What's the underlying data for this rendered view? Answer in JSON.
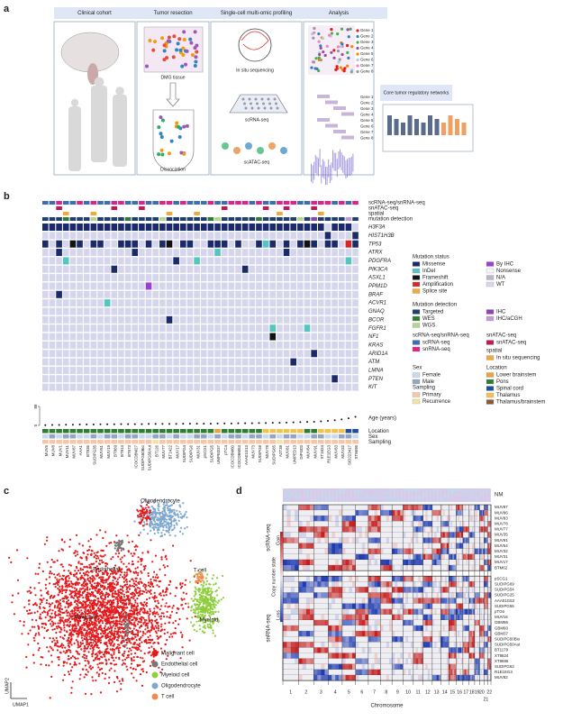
{
  "panel_a": {
    "letter": "a",
    "stages": [
      "Clinical cohort",
      "Tumor resection",
      "Single-cell multi-omic profiling",
      "Analysis"
    ],
    "labels": {
      "tissue": "DMG tissue",
      "dissociation": "Dissociation",
      "insitu": "In situ sequencing",
      "scrna": "scRNA-seq",
      "scatac": "scATAC-seq",
      "networks": "Core tumor regulatory networks"
    },
    "genes": [
      "Gene 1",
      "Gene 2",
      "Gene 3",
      "Gene 4",
      "Gene 5",
      "Gene 6",
      "Gene 7",
      "Gene 8"
    ]
  },
  "panel_b": {
    "letter": "b",
    "tracks": [
      {
        "label": "scRNA-seq/snRNA-seq",
        "codes": "ccnccncnccnnccnccnncncccnccnnncnccnnnccnnncncn"
      },
      {
        "label": "snATAC-seq",
        "codes": "..x.......x...x...........x.....x..x...x......"
      },
      {
        "label": "spatial",
        "codes": "...s...s..........s...s...........s.....s....."
      },
      {
        "label": "mutation detection",
        "codes": "tttetttgttttettttgttttttegtttttetttttgtittttht"
      }
    ],
    "genes": [
      {
        "name": "H3F3A",
        "status": "mmmmmmmmmmmmmmmmmmmmmmmmmmmmmmmmmmmmmmmmmwmmmw"
      },
      {
        "name": "HIST1H3B",
        "status": "wwwwwwwwwwwwwwwwwwwwwwwwwwwwwwwwwwwwwwwwwmwwwm"
      },
      {
        "name": "TP53",
        "status": "mwmwfmwmmwwmmmwmwmfwmmwwmmmwmwwmimwmwmfmwmmwam"
      },
      {
        "name": "ATRX",
        "status": "wwmwwwwwwwwwwmwwwwwwwwwwwiwwwwwwwwwmwwwwwwwwww"
      },
      {
        "name": "PDGFRA",
        "status": "wwwiwwwwwwwwwwwwwwwmwwiwwwwwwwwwwwwwwwwwwwwwiw"
      },
      {
        "name": "PIK3CA",
        "status": "wwwwwwwwwwmwwwwwwwwwwwwwwwwwwmwwwwwwwwwwwwwwww"
      },
      {
        "name": "ASXL1",
        "status": "wwwwwwwwwwwwwwwwwwwwwwwwwwwwwwwwwwwwwwwwwwwwww"
      },
      {
        "name": "PPM1D",
        "status": "wwwwwwwwwwwwwwwhwwwwwwwwwwwwwwwwwwwwwwwwwwwwww"
      },
      {
        "name": "BRAF",
        "status": "wwmwwwwwwwwwwwwwwwwwwwwwwwwwwwwwwwwwwwwwwwwwww"
      },
      {
        "name": "ACVR1",
        "status": "wwwwwwwwwiwwwwwwwwwwwwwwwwwwwwwwwwwwwwwwwwwwww"
      },
      {
        "name": "GNAQ",
        "status": "wwwwwwwwwwwwwwwwwwwwwwwwwwwwwwwwwwwwwwwwwwwwww"
      },
      {
        "name": "BCOR",
        "status": "wwwwwwwwwwwwwwwwwwmwwwwwwwwwwwwwwwwwwwwwwwwwww"
      },
      {
        "name": "FGFR1",
        "status": "wwwwwwwwwwwwwwwwwwwwwwwwwwwwwwwwwiwwwwiwwwwwww"
      },
      {
        "name": "NF1",
        "status": "wwwwwwwwwwwwwwwwwwwwwwwwwwwwwwwwwfwwwwwwwwwwww"
      },
      {
        "name": "KRAS",
        "status": "wwwwwwwwwwwwwwwwwwwwwwwwwwwwwwwwwwwwwwwwwwwwww"
      },
      {
        "name": "ARID1A",
        "status": "wwwwwwwwwwwwwwwwwwwwwwwwwwwwwwwwwwwwwwwmwwwwww"
      },
      {
        "name": "ATM",
        "status": "wwwwwwwwwwwwwwwwwwwwwwwwwwwwwwwwwwwwmwwwwwwwww"
      },
      {
        "name": "LMNA",
        "status": "wwwwwwwwwwwwwwwwwwwwwwwwwwwwwwwwwwwwwwwwwwwwww"
      },
      {
        "name": "PTEN",
        "status": "wwwwwwwwwwwwwwwwwwwwwwwwwwwwwwwwwwwwwwwwwwmwww"
      },
      {
        "name": "KIT",
        "status": "wwwwwwwwwwwwwwwwwwwwwwwwwwwwwwwwwwwwwwwwwwwwww"
      }
    ],
    "age_label": "Age (years)",
    "age_ticks": [
      0,
      88
    ],
    "age": [
      1,
      2,
      2,
      3,
      3,
      4,
      4,
      4,
      5,
      5,
      5,
      6,
      6,
      6,
      6,
      7,
      7,
      7,
      7,
      7,
      8,
      8,
      8,
      8,
      8,
      9,
      9,
      9,
      10,
      10,
      10,
      11,
      11,
      12,
      12,
      13,
      14,
      15,
      16,
      17,
      19,
      21,
      24,
      28,
      33,
      40
    ],
    "location_label": "Location",
    "location": "ppppppppppppppppppppppppplppppppttttttppttttss",
    "sex_label": "Sex",
    "sex": "fmfmmffmfmmfmmffmmfmffmmfmfmmfmmfmfmmffmmffmmf",
    "sampling_label": "Sampling",
    "sampling": "pppppppppppppppprppppppppppppppppprppppppppppp",
    "samples": [
      "MUV5",
      "MUV8",
      "MUV1",
      "MUV11",
      "MUV87",
      "AAA1",
      "BT836",
      "SUDIPG35",
      "MUV51",
      "MUV19",
      "BT869",
      "BT813",
      "BT673",
      "ICOCDBM27",
      "SUDIPG50Bio",
      "SUDIPG50Aut",
      "BT126",
      "MUV77",
      "BT1422",
      "MUV17",
      "SUDIPG4",
      "SUDIPG6",
      "MUV31",
      "pSCG1",
      "SUDIPG5",
      "UMPED37",
      "pTC4",
      "ICOCDBM60",
      "ICOCDBM63",
      "AAA01G13",
      "MUV73",
      "SUDIPG8",
      "MUV78",
      "SUDIPG65",
      "A2T38",
      "MUV81",
      "UMPED13",
      "DIPG03",
      "MUV84",
      "MUV91",
      "XT1624",
      "R1E1EG3",
      "MUV83",
      "MUV32",
      "SID223417",
      "XT8695"
    ],
    "legend": [
      {
        "title": "Mutation status",
        "col": 0,
        "items": [
          {
            "code": "m",
            "label": "Missense",
            "color": "#1b2a6b"
          },
          {
            "code": "i",
            "label": "InDel",
            "color": "#55c5bf"
          },
          {
            "code": "f",
            "label": "Frameshift",
            "color": "#111111"
          },
          {
            "code": "a",
            "label": "Amplification",
            "color": "#d62728"
          },
          {
            "code": "s",
            "label": "Splice site",
            "color": "#f2a93b"
          }
        ]
      },
      {
        "title": null,
        "col": 1,
        "items": [
          {
            "code": "h",
            "label": "By IHC",
            "color": "#9b3fd0"
          },
          {
            "code": "x",
            "label": "Nonsense",
            "color": "#f4f4fb"
          },
          {
            "code": "n",
            "label": "N/A",
            "color": "#b9b9c4"
          },
          {
            "code": "w",
            "label": "WT",
            "color": "#d5d6ec"
          }
        ]
      },
      {
        "title": "Mutation detection",
        "col": 0,
        "items": [
          {
            "code": "t",
            "label": "Targeted",
            "color": "#1f3e72"
          },
          {
            "code": "e",
            "label": "WES",
            "color": "#2e7d32"
          },
          {
            "code": "g",
            "label": "WGS",
            "color": "#b5d68a"
          }
        ]
      },
      {
        "title": null,
        "col": 1,
        "items": [
          {
            "code": "i",
            "label": "IHC",
            "color": "#8e44ad"
          },
          {
            "code": "h",
            "label": "IHC/aCGH",
            "color": "#c39bd3"
          }
        ]
      },
      {
        "title": "scRNA-seq/snRNA-seq",
        "col": 0,
        "items": [
          {
            "code": "c",
            "label": "scRNA-seq",
            "color": "#3a6fb5"
          },
          {
            "code": "n",
            "label": "snRNA-seq",
            "color": "#e0228a"
          }
        ]
      },
      {
        "title": "snATAC-seq",
        "col": 1,
        "items": [
          {
            "code": "x",
            "label": "snATAC-seq",
            "color": "#c2185b"
          }
        ]
      },
      {
        "title": "spatial",
        "col": 1,
        "items": [
          {
            "code": "s",
            "label": "In situ sequencing",
            "color": "#f2a93b"
          }
        ]
      },
      {
        "title": "Sex",
        "col": 0,
        "items": [
          {
            "code": "f",
            "label": "Female",
            "color": "#c7d9ee"
          },
          {
            "code": "m",
            "label": "Male",
            "color": "#93a5c4"
          }
        ]
      },
      {
        "title": "Location",
        "col": 1,
        "items": [
          {
            "code": "l",
            "label": "Lower brainstem",
            "color": "#e8a33d"
          },
          {
            "code": "p",
            "label": "Pons",
            "color": "#2e7d32"
          },
          {
            "code": "s",
            "label": "Spinal cord",
            "color": "#1f4e9c"
          },
          {
            "code": "t",
            "label": "Thalamus",
            "color": "#f2c14e"
          },
          {
            "code": "b",
            "label": "Thalamus/brainstem",
            "color": "#8b5a2b"
          }
        ]
      },
      {
        "title": "Sampling",
        "col": 0,
        "items": [
          {
            "code": "p",
            "label": "Primary",
            "color": "#f6c7a6"
          },
          {
            "code": "r",
            "label": "Recurrence",
            "color": "#f3e3a8"
          }
        ]
      }
    ]
  },
  "panel_c": {
    "letter": "c",
    "x_label": "UMAP1",
    "y_label": "UMAP2",
    "cell_types": [
      {
        "label": "Malignant cell",
        "short": "Malignant",
        "color": "#e41a1c"
      },
      {
        "label": "Endothelial cell",
        "short": "Endothelial",
        "color": "#777777"
      },
      {
        "label": "Myeloid cell",
        "short": "Myeloid",
        "color": "#8fce3f"
      },
      {
        "label": "Oligodendrocyte",
        "short": "Oligodendrocyte",
        "color": "#7fa8d0"
      },
      {
        "label": "T cell",
        "short": "T cell",
        "color": "#f08a4b"
      }
    ]
  },
  "panel_d": {
    "letter": "d",
    "top_label": "NM",
    "colorbar": {
      "title": "Copy number state",
      "high": "Gain",
      "low": "Loss"
    },
    "groups": [
      {
        "label": "scRNA-seq",
        "samples": [
          "MUV87",
          "MUV86",
          "MUV83",
          "MUV78",
          "MUV77",
          "MUV35",
          "MUV91",
          "MUV54",
          "MUV32",
          "MUV31",
          "MUV17",
          "BTM62"
        ]
      },
      {
        "label": "snRNA-seq",
        "samples": [
          "pSCG1",
          "SUDIPG69",
          "SUDIPG54",
          "SUDIPG25",
          "AAA01G53",
          "SUDIPG55",
          "pTG6",
          "MUV16",
          "GBM96",
          "GBM60",
          "GBM37",
          "SUDIPG50Bio",
          "SUDIPG50Aut",
          "BT1179",
          "XT9824",
          "XT8696",
          "SUDIPG63",
          "R1E1EG3",
          "MUV82"
        ]
      }
    ],
    "chromosomes": [
      "1",
      "2",
      "3",
      "4",
      "5",
      "6",
      "7",
      "8",
      "9",
      "10",
      "11",
      "12",
      "13",
      "14",
      "15",
      "16",
      "17",
      "18",
      "19",
      "20",
      "21",
      "22"
    ],
    "x_label": "Chromosome"
  }
}
